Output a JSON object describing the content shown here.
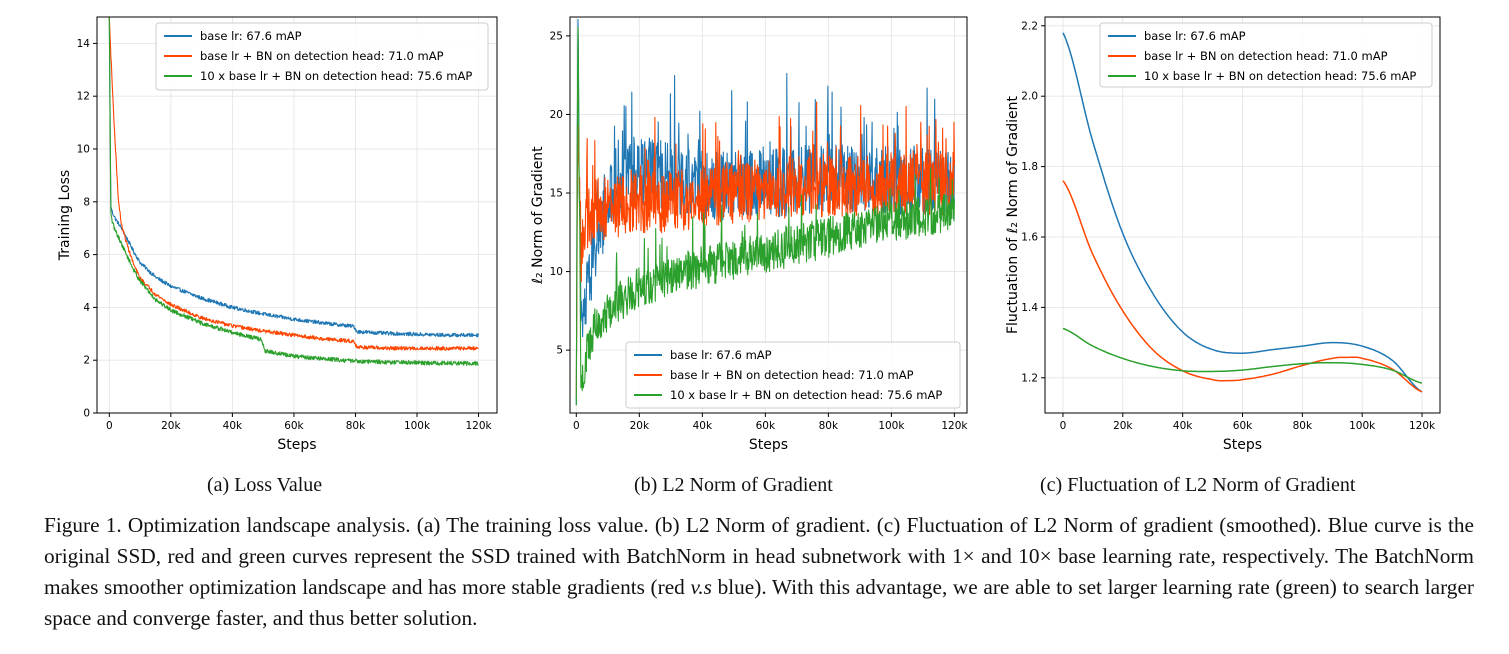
{
  "colors": {
    "blue": "#1f77b4",
    "red": "#ff4500",
    "green": "#2ca02c",
    "grid": "#e3e3e3",
    "axis": "#000000"
  },
  "legend_labels": [
    "base lr: 67.6 mAP",
    "base lr + BN on detection head: 71.0 mAP",
    "10 x base lr + BN on detection head: 75.6 mAP"
  ],
  "chart_data": [
    {
      "id": "a",
      "type": "line",
      "xlabel": "Steps",
      "ylabel": "Training Loss",
      "xlim": [
        -4000,
        126000
      ],
      "ylim": [
        0,
        15
      ],
      "xticks": [
        0,
        20000,
        40000,
        60000,
        80000,
        100000,
        120000
      ],
      "xtick_labels": [
        "0",
        "20k",
        "40k",
        "60k",
        "80k",
        "100k",
        "120k"
      ],
      "yticks": [
        0,
        2,
        4,
        6,
        8,
        10,
        12,
        14
      ],
      "ytick_labels": [
        "0",
        "2",
        "4",
        "6",
        "8",
        "10",
        "12",
        "14"
      ],
      "legend_position": "top-right",
      "grid": true,
      "noisy": true,
      "series": [
        {
          "name": "base lr: 67.6 mAP",
          "color": "#1f77b4",
          "noise": 0.07,
          "x": [
            0,
            500,
            1000,
            2000,
            4000,
            6000,
            8000,
            10000,
            15000,
            20000,
            30000,
            40000,
            50000,
            60000,
            70000,
            79500,
            80500,
            90000,
            100000,
            110000,
            120000
          ],
          "y": [
            15.0,
            7.8,
            7.6,
            7.35,
            7.0,
            6.55,
            6.1,
            5.7,
            5.15,
            4.8,
            4.35,
            4.0,
            3.75,
            3.55,
            3.4,
            3.28,
            3.08,
            3.02,
            2.98,
            2.95,
            2.95
          ]
        },
        {
          "name": "base lr + BN on detection head: 71.0 mAP",
          "color": "#ff4500",
          "noise": 0.07,
          "x": [
            0,
            500,
            1000,
            2000,
            3000,
            4000,
            6000,
            8000,
            10000,
            15000,
            20000,
            30000,
            40000,
            50000,
            60000,
            70000,
            79500,
            80500,
            90000,
            100000,
            110000,
            120000
          ],
          "y": [
            15.0,
            13.6,
            12.3,
            10.0,
            8.0,
            7.1,
            6.3,
            5.6,
            5.1,
            4.5,
            4.1,
            3.6,
            3.3,
            3.1,
            2.95,
            2.8,
            2.72,
            2.5,
            2.45,
            2.45,
            2.45,
            2.45
          ]
        },
        {
          "name": "10 x base lr + BN on detection head: 75.6 mAP",
          "color": "#2ca02c",
          "noise": 0.08,
          "x": [
            0,
            500,
            1000,
            2000,
            4000,
            6000,
            8000,
            10000,
            15000,
            20000,
            30000,
            40000,
            49500,
            50500,
            60000,
            70000,
            80000,
            90000,
            100000,
            110000,
            120000
          ],
          "y": [
            15.0,
            7.6,
            7.2,
            6.9,
            6.4,
            5.9,
            5.4,
            5.0,
            4.3,
            3.9,
            3.4,
            3.05,
            2.78,
            2.35,
            2.15,
            2.05,
            1.97,
            1.93,
            1.9,
            1.88,
            1.88
          ]
        }
      ]
    },
    {
      "id": "b",
      "type": "line",
      "xlabel": "Steps",
      "ylabel": "ℓ₂ Norm of Gradient",
      "xlim": [
        -2000,
        124000
      ],
      "ylim": [
        1,
        26.2
      ],
      "xticks": [
        0,
        20000,
        40000,
        60000,
        80000,
        100000,
        120000
      ],
      "xtick_labels": [
        "0",
        "20k",
        "40k",
        "60k",
        "80k",
        "100k",
        "120k"
      ],
      "yticks": [
        5,
        10,
        15,
        20,
        25
      ],
      "ytick_labels": [
        "5",
        "10",
        "15",
        "20",
        "25"
      ],
      "legend_position": "bottom-right",
      "grid": true,
      "noisy": true,
      "series": [
        {
          "name": "base lr: 67.6 mAP",
          "color": "#1f77b4",
          "noise": 2.2,
          "x": [
            0,
            500,
            1500,
            3000,
            5000,
            8000,
            12000,
            16000,
            20000,
            30000,
            40000,
            50000,
            60000,
            70000,
            80000,
            90000,
            100000,
            110000,
            120000
          ],
          "y": [
            1.5,
            26.0,
            6.0,
            8.0,
            10.5,
            13.0,
            15.0,
            16.5,
            16.5,
            16.0,
            15.5,
            15.5,
            15.6,
            15.8,
            16.0,
            16.0,
            15.8,
            15.8,
            15.5
          ]
        },
        {
          "name": "base lr + BN on detection head: 71.0 mAP",
          "color": "#ff4500",
          "noise": 2.0,
          "x": [
            0,
            500,
            1500,
            3000,
            6000,
            10000,
            20000,
            30000,
            40000,
            50000,
            60000,
            70000,
            80000,
            90000,
            100000,
            110000,
            120000
          ],
          "y": [
            2.0,
            20.0,
            11.0,
            13.0,
            14.0,
            14.0,
            14.3,
            14.5,
            14.8,
            15.0,
            15.2,
            15.4,
            15.5,
            15.5,
            15.6,
            15.6,
            15.6
          ]
        },
        {
          "name": "10 x base lr + BN on detection head: 75.6 mAP",
          "color": "#2ca02c",
          "noise": 1.3,
          "x": [
            0,
            500,
            1500,
            3000,
            6000,
            10000,
            20000,
            30000,
            40000,
            50000,
            60000,
            70000,
            80000,
            90000,
            100000,
            110000,
            120000
          ],
          "y": [
            1.5,
            26.0,
            3.0,
            4.5,
            6.5,
            7.5,
            9.0,
            9.7,
            10.3,
            10.8,
            11.2,
            11.7,
            12.2,
            12.8,
            13.2,
            13.5,
            13.8
          ]
        }
      ]
    },
    {
      "id": "c",
      "type": "line",
      "xlabel": "Steps",
      "ylabel": "Fluctuation of ℓ₂ Norm of Gradient",
      "xlim": [
        -6000,
        126000
      ],
      "ylim": [
        1.1,
        2.225
      ],
      "xticks": [
        0,
        20000,
        40000,
        60000,
        80000,
        100000,
        120000
      ],
      "xtick_labels": [
        "0",
        "20k",
        "40k",
        "60k",
        "80k",
        "100k",
        "120k"
      ],
      "yticks": [
        1.2,
        1.4,
        1.6,
        1.8,
        2.0,
        2.2
      ],
      "ytick_labels": [
        "1.2",
        "1.4",
        "1.6",
        "1.8",
        "2.0",
        "2.2"
      ],
      "legend_position": "top-right",
      "grid": true,
      "noisy": false,
      "series": [
        {
          "name": "base lr: 67.6 mAP",
          "color": "#1f77b4",
          "x": [
            0,
            10000,
            20000,
            30000,
            40000,
            50000,
            60000,
            70000,
            80000,
            90000,
            100000,
            110000,
            120000
          ],
          "y": [
            2.18,
            1.87,
            1.61,
            1.44,
            1.33,
            1.28,
            1.27,
            1.28,
            1.29,
            1.3,
            1.29,
            1.25,
            1.16
          ]
        },
        {
          "name": "base lr + BN on detection head: 71.0 mAP",
          "color": "#ff4500",
          "x": [
            0,
            10000,
            20000,
            30000,
            40000,
            50000,
            55000,
            60000,
            70000,
            80000,
            90000,
            95000,
            100000,
            110000,
            120000
          ],
          "y": [
            1.76,
            1.55,
            1.39,
            1.28,
            1.22,
            1.195,
            1.192,
            1.195,
            1.21,
            1.235,
            1.255,
            1.258,
            1.255,
            1.225,
            1.16
          ]
        },
        {
          "name": "10 x base lr + BN on detection head: 75.6 mAP",
          "color": "#2ca02c",
          "x": [
            0,
            10000,
            20000,
            30000,
            40000,
            50000,
            60000,
            70000,
            80000,
            90000,
            100000,
            110000,
            120000
          ],
          "y": [
            1.34,
            1.29,
            1.255,
            1.232,
            1.22,
            1.218,
            1.222,
            1.232,
            1.24,
            1.243,
            1.238,
            1.222,
            1.185
          ]
        }
      ]
    }
  ],
  "subcaptions": {
    "a": "(a)  Loss Value",
    "b": "(b)  L2 Norm of Gradient",
    "c": "(c)  Fluctuation of L2 Norm of Gradient"
  },
  "caption": {
    "part1": "Figure 1. Optimization landscape analysis. (a) The training loss value. (b) L2 Norm of gradient. (c) Fluctuation of L2 Norm of gradient (smoothed). Blue curve is the original SSD, red and green curves represent the SSD trained with BatchNorm in head subnetwork with 1× and 10× base learning rate, respectively. The BatchNorm makes smoother optimization landscape and has more stable gradients (red ",
    "italic": "v.s",
    "part2": " blue). With this advantage, we are able to set larger learning rate (green) to search larger space and converge faster, and thus better solution."
  }
}
